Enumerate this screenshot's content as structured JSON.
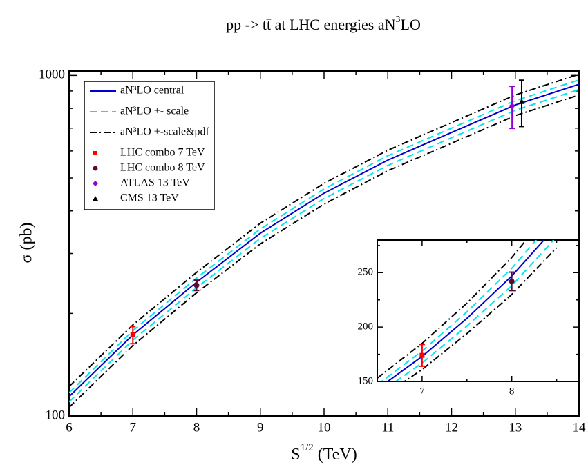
{
  "chart_data": [
    {
      "type": "line",
      "title": [
        "pp -> tt̄    at  LHC  energies       aN",
        "3",
        "LO"
      ],
      "xlabel": [
        "S",
        "1/2",
        " (TeV)"
      ],
      "ylabel": "σ (pb)",
      "ylog": true,
      "legend": "top-left",
      "xlim": [
        6,
        14
      ],
      "xticks": [
        6,
        7,
        8,
        9,
        10,
        11,
        12,
        13,
        14
      ],
      "xminorticks": [
        6.5,
        7.5,
        8.5,
        9.5,
        10.5,
        11.5,
        12.5,
        13.5
      ],
      "ylim": [
        100,
        1030
      ],
      "yticks": [
        100,
        1000
      ],
      "yminorticks": [
        200,
        300,
        400,
        500,
        600,
        700,
        800,
        900
      ],
      "x": [
        6,
        7,
        8,
        9,
        10,
        11,
        12,
        13,
        14
      ],
      "series": [
        {
          "name": "aN³LO central",
          "color": "#0000cc",
          "dash": "solid",
          "values": [
            114,
            173,
            247,
            344,
            451,
            564,
            680,
            819,
            942
          ]
        },
        {
          "name": "aN³LO +- scale",
          "color": "#00e5ee",
          "dash": "dashed",
          "values": [
            117,
            178,
            254,
            354,
            464,
            581,
            700,
            843,
            970
          ]
        },
        {
          "color": "#00e5ee",
          "dash": "dashed",
          "values": [
            110,
            167,
            238,
            332,
            435,
            544,
            656,
            790,
            909
          ]
        },
        {
          "name": "aN³LO +-scale&pdf",
          "color": "#000000",
          "dash": "dashdot",
          "values": [
            122,
            185,
            264,
            368,
            482,
            603,
            727,
            876,
            1008
          ]
        },
        {
          "color": "#000000",
          "dash": "dashdot",
          "values": [
            106,
            161,
            230,
            320,
            419,
            525,
            632,
            762,
            876
          ]
        }
      ],
      "points": [
        {
          "name": "LHC combo  7 TeV",
          "color": "#ff0000",
          "marker": "square",
          "x": 7,
          "value": 173,
          "error": 10
        },
        {
          "name": "LHC combo  8 TeV",
          "color": "#5a0a3a",
          "marker": "circle",
          "x": 8,
          "value": 242,
          "error": 8.5
        },
        {
          "name": "ATLAS 13 TeV",
          "color": "#9400d3",
          "marker": "diamond",
          "x": 12.95,
          "value": 814,
          "error": 115
        },
        {
          "name": "CMS 13 TeV",
          "color": "#000000",
          "marker": "triangle",
          "x": 13.1,
          "value": 838,
          "error": 130
        }
      ]
    },
    {
      "type": "line",
      "ylog": false,
      "xlim": [
        6.5,
        8.75
      ],
      "xticks": [
        7,
        8
      ],
      "xminorticks": [
        7.5,
        8.5
      ],
      "ylim": [
        150,
        280
      ],
      "yticks": [
        150,
        200,
        250
      ],
      "yminorticks": [
        175,
        225,
        275
      ],
      "x": [
        6.5,
        7,
        7.5,
        8,
        8.5
      ],
      "series": [
        {
          "color": "#0000cc",
          "dash": "solid",
          "values": [
            143,
            173,
            208,
            247,
            293
          ]
        },
        {
          "color": "#00e5ee",
          "dash": "dashed",
          "values": [
            147,
            178,
            214,
            254,
            302
          ]
        },
        {
          "color": "#00e5ee",
          "dash": "dashed",
          "values": [
            138,
            167,
            201,
            238,
            283
          ]
        },
        {
          "color": "#000000",
          "dash": "dashdot",
          "values": [
            153,
            185,
            222,
            264,
            314
          ]
        },
        {
          "color": "#000000",
          "dash": "dashdot",
          "values": [
            133,
            161,
            194,
            230,
            273
          ]
        }
      ],
      "points": [
        {
          "color": "#ff0000",
          "marker": "square",
          "x": 7,
          "value": 174,
          "error": 10
        },
        {
          "color": "#5a0a3a",
          "marker": "circle",
          "x": 8,
          "value": 242,
          "error": 8.5
        }
      ]
    }
  ]
}
